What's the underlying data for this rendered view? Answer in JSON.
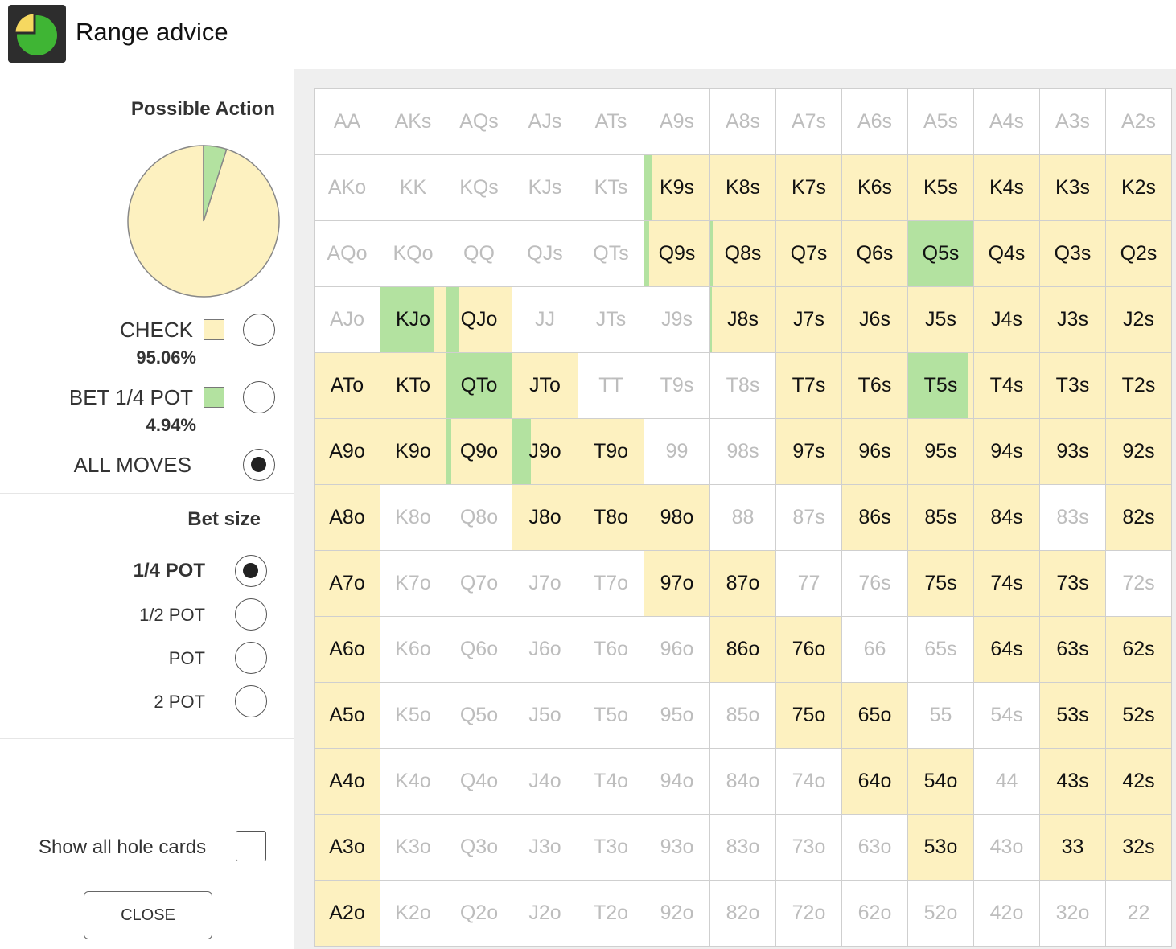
{
  "header": {
    "title": "Range advice",
    "logo_icon": "pie-chart-logo-icon"
  },
  "colors": {
    "check": "#fdf1c0",
    "bet": "#b3e2a0",
    "logo_yellow": "#f6d860",
    "logo_green": "#3fb534",
    "logo_bg": "#2d2d2d"
  },
  "actions": {
    "title": "Possible Action",
    "items": [
      {
        "label": "CHECK",
        "percent": "95.06%",
        "value": 95.06,
        "selected": false
      },
      {
        "label": "BET 1/4 POT",
        "percent": "4.94%",
        "value": 4.94,
        "selected": false
      },
      {
        "label": "ALL MOVES",
        "selected": true
      }
    ]
  },
  "bet_size": {
    "title": "Bet size",
    "options": [
      {
        "label": "1/4 POT",
        "selected": true
      },
      {
        "label": "1/2 POT",
        "selected": false
      },
      {
        "label": "POT",
        "selected": false
      },
      {
        "label": "2 POT",
        "selected": false
      }
    ]
  },
  "show_hole_cards": {
    "label": "Show all hole cards",
    "checked": false
  },
  "close_label": "CLOSE",
  "grid": {
    "labels": [
      [
        "AA",
        "AKs",
        "AQs",
        "AJs",
        "ATs",
        "A9s",
        "A8s",
        "A7s",
        "A6s",
        "A5s",
        "A4s",
        "A3s",
        "A2s"
      ],
      [
        "AKo",
        "KK",
        "KQs",
        "KJs",
        "KTs",
        "K9s",
        "K8s",
        "K7s",
        "K6s",
        "K5s",
        "K4s",
        "K3s",
        "K2s"
      ],
      [
        "AQo",
        "KQo",
        "QQ",
        "QJs",
        "QTs",
        "Q9s",
        "Q8s",
        "Q7s",
        "Q6s",
        "Q5s",
        "Q4s",
        "Q3s",
        "Q2s"
      ],
      [
        "AJo",
        "KJo",
        "QJo",
        "JJ",
        "JTs",
        "J9s",
        "J8s",
        "J7s",
        "J6s",
        "J5s",
        "J4s",
        "J3s",
        "J2s"
      ],
      [
        "ATo",
        "KTo",
        "QTo",
        "JTo",
        "TT",
        "T9s",
        "T8s",
        "T7s",
        "T6s",
        "T5s",
        "T4s",
        "T3s",
        "T2s"
      ],
      [
        "A9o",
        "K9o",
        "Q9o",
        "J9o",
        "T9o",
        "99",
        "98s",
        "97s",
        "96s",
        "95s",
        "94s",
        "93s",
        "92s"
      ],
      [
        "A8o",
        "K8o",
        "Q8o",
        "J8o",
        "T8o",
        "98o",
        "88",
        "87s",
        "86s",
        "85s",
        "84s",
        "83s",
        "82s"
      ],
      [
        "A7o",
        "K7o",
        "Q7o",
        "J7o",
        "T7o",
        "97o",
        "87o",
        "77",
        "76s",
        "75s",
        "74s",
        "73s",
        "72s"
      ],
      [
        "A6o",
        "K6o",
        "Q6o",
        "J6o",
        "T6o",
        "96o",
        "86o",
        "76o",
        "66",
        "65s",
        "64s",
        "63s",
        "62s"
      ],
      [
        "A5o",
        "K5o",
        "Q5o",
        "J5o",
        "T5o",
        "95o",
        "85o",
        "75o",
        "65o",
        "55",
        "54s",
        "53s",
        "52s"
      ],
      [
        "A4o",
        "K4o",
        "Q4o",
        "J4o",
        "T4o",
        "94o",
        "84o",
        "74o",
        "64o",
        "54o",
        "44",
        "43s",
        "42s"
      ],
      [
        "A3o",
        "K3o",
        "Q3o",
        "J3o",
        "T3o",
        "93o",
        "83o",
        "73o",
        "63o",
        "53o",
        "43o",
        "33",
        "32s"
      ],
      [
        "A2o",
        "K2o",
        "Q2o",
        "J2o",
        "T2o",
        "92o",
        "82o",
        "72o",
        "62o",
        "52o",
        "42o",
        "32o",
        "22"
      ]
    ],
    "freqs": [
      [
        null,
        null,
        null,
        null,
        null,
        null,
        null,
        null,
        null,
        null,
        null,
        null,
        null
      ],
      [
        null,
        null,
        null,
        null,
        null,
        [
          0.12,
          0.88
        ],
        [
          0,
          1
        ],
        [
          0,
          1
        ],
        [
          0,
          1
        ],
        [
          0,
          1
        ],
        [
          0,
          1
        ],
        [
          0,
          1
        ],
        [
          0,
          1
        ]
      ],
      [
        null,
        null,
        null,
        null,
        null,
        [
          0.08,
          0.92
        ],
        [
          0.05,
          0.95
        ],
        [
          0,
          1
        ],
        [
          0,
          1
        ],
        [
          1,
          0
        ],
        [
          0,
          1
        ],
        [
          0,
          1
        ],
        [
          0,
          1
        ]
      ],
      [
        null,
        [
          0.82,
          0.18
        ],
        [
          0.2,
          0.8
        ],
        null,
        null,
        null,
        [
          0.02,
          0.98
        ],
        [
          0,
          1
        ],
        [
          0,
          1
        ],
        [
          0,
          1
        ],
        [
          0,
          1
        ],
        [
          0,
          1
        ],
        [
          0,
          1
        ]
      ],
      [
        [
          0,
          1
        ],
        [
          0,
          1
        ],
        [
          1,
          0
        ],
        [
          0,
          1
        ],
        null,
        null,
        null,
        [
          0,
          1
        ],
        [
          0,
          1
        ],
        [
          0.92,
          0.08
        ],
        [
          0,
          1
        ],
        [
          0,
          1
        ],
        [
          0,
          1
        ]
      ],
      [
        [
          0,
          1
        ],
        [
          0,
          1
        ],
        [
          0.08,
          0.92
        ],
        [
          0.28,
          0.72
        ],
        [
          0,
          1
        ],
        null,
        null,
        [
          0,
          1
        ],
        [
          0,
          1
        ],
        [
          0,
          1
        ],
        [
          0,
          1
        ],
        [
          0,
          1
        ],
        [
          0,
          1
        ]
      ],
      [
        [
          0,
          1
        ],
        null,
        null,
        [
          0,
          1
        ],
        [
          0,
          1
        ],
        [
          0,
          1
        ],
        null,
        null,
        [
          0,
          1
        ],
        [
          0,
          1
        ],
        [
          0,
          1
        ],
        null,
        [
          0,
          1
        ]
      ],
      [
        [
          0,
          1
        ],
        null,
        null,
        null,
        null,
        [
          0,
          1
        ],
        [
          0,
          1
        ],
        null,
        null,
        [
          0,
          1
        ],
        [
          0,
          1
        ],
        [
          0,
          1
        ],
        null
      ],
      [
        [
          0,
          1
        ],
        null,
        null,
        null,
        null,
        null,
        [
          0,
          1
        ],
        [
          0,
          1
        ],
        null,
        null,
        [
          0,
          1
        ],
        [
          0,
          1
        ],
        [
          0,
          1
        ]
      ],
      [
        [
          0,
          1
        ],
        null,
        null,
        null,
        null,
        null,
        null,
        [
          0,
          1
        ],
        [
          0,
          1
        ],
        null,
        null,
        [
          0,
          1
        ],
        [
          0,
          1
        ]
      ],
      [
        [
          0,
          1
        ],
        null,
        null,
        null,
        null,
        null,
        null,
        null,
        [
          0,
          1
        ],
        [
          0,
          1
        ],
        null,
        [
          0,
          1
        ],
        [
          0,
          1
        ]
      ],
      [
        [
          0,
          1
        ],
        null,
        null,
        null,
        null,
        null,
        null,
        null,
        null,
        [
          0,
          1
        ],
        null,
        [
          0,
          1
        ],
        [
          0,
          1
        ]
      ],
      [
        [
          0,
          1
        ],
        null,
        null,
        null,
        null,
        null,
        null,
        null,
        null,
        null,
        null,
        null,
        null
      ]
    ]
  }
}
